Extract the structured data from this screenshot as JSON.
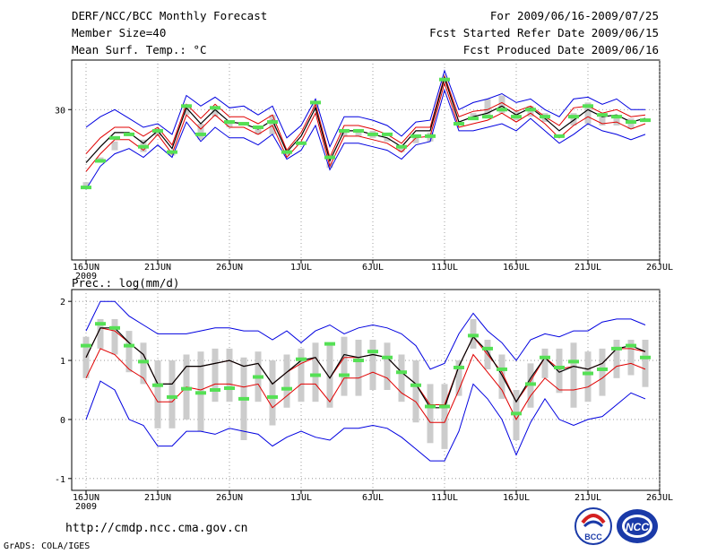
{
  "header": {
    "title": "DERF/NCC/BCC Monthly Forecast",
    "member_size": "Member Size=40",
    "var1": "Mean Surf. Temp.: °C",
    "period": "For 2009/06/16-2009/07/25",
    "started": "Fcst Started Refer Date 2009/06/15",
    "produced": "Fcst Produced Date 2009/06/16"
  },
  "footer": {
    "url": "http://cmdp.ncc.cma.gov.cn",
    "grads": "GrADS: COLA/IGES"
  },
  "logos": {
    "bcc": "BCC",
    "ncc": "NCC"
  },
  "colors": {
    "mean": "#000000",
    "spread": "#0000e0",
    "inner": "#e00000",
    "box": "#cccccc",
    "obs": "#55e055"
  },
  "chart_data": [
    {
      "type": "line",
      "title": "Mean Surf. Temp.: °C",
      "x_ticks": [
        "16JUN",
        "21JUN",
        "26JUN",
        "1JUL",
        "6JUL",
        "11JUL",
        "16JUL",
        "21JUL",
        "26JUL"
      ],
      "year_label": "2009",
      "y_ticks": [
        30
      ],
      "ylim": [
        21.5,
        32.8
      ],
      "series": [
        {
          "name": "upper",
          "values": [
            29.0,
            29.6,
            30.0,
            29.5,
            29.0,
            29.2,
            28.6,
            30.8,
            30.2,
            30.7,
            30.1,
            30.2,
            29.7,
            30.2,
            28.4,
            29.1,
            30.6,
            27.9,
            29.6,
            29.6,
            29.4,
            29.1,
            28.5,
            29.3,
            29.4,
            32.2,
            30.0,
            30.4,
            30.6,
            30.9,
            30.4,
            30.6,
            30.0,
            29.6,
            30.6,
            30.7,
            30.3,
            30.6,
            30.0,
            30.0
          ]
        },
        {
          "name": "upper_red",
          "values": [
            27.5,
            28.4,
            29.0,
            29.0,
            28.5,
            29.0,
            28.0,
            30.3,
            29.5,
            30.3,
            29.6,
            29.6,
            29.2,
            29.7,
            27.7,
            28.7,
            30.3,
            27.3,
            29.1,
            29.1,
            28.9,
            28.6,
            28.1,
            29.0,
            29.0,
            31.9,
            29.6,
            29.9,
            30.0,
            30.4,
            29.9,
            30.2,
            29.6,
            29.1,
            30.1,
            30.2,
            29.8,
            30.0,
            29.6,
            29.7
          ]
        },
        {
          "name": "mean",
          "values": [
            27.0,
            27.9,
            28.7,
            28.7,
            28.1,
            28.8,
            27.8,
            30.1,
            29.2,
            30.0,
            29.3,
            29.2,
            28.9,
            29.4,
            27.6,
            28.5,
            30.1,
            27.1,
            28.8,
            28.8,
            28.6,
            28.4,
            27.9,
            28.8,
            28.8,
            31.8,
            29.3,
            29.6,
            29.8,
            30.2,
            29.7,
            30.1,
            29.5,
            28.8,
            29.4,
            30.0,
            29.6,
            29.7,
            29.3,
            29.5
          ]
        },
        {
          "name": "lower_red",
          "values": [
            26.5,
            27.5,
            28.3,
            28.3,
            27.7,
            28.6,
            27.5,
            29.7,
            28.9,
            29.7,
            29.0,
            29.0,
            28.6,
            29.1,
            27.3,
            28.2,
            29.8,
            26.8,
            28.5,
            28.5,
            28.3,
            28.1,
            27.6,
            28.4,
            28.5,
            31.5,
            29.0,
            29.2,
            29.4,
            29.8,
            29.3,
            29.8,
            29.2,
            28.4,
            29.1,
            29.6,
            29.2,
            29.3,
            28.9,
            29.2
          ]
        },
        {
          "name": "lower",
          "values": [
            25.5,
            26.8,
            27.5,
            27.8,
            27.3,
            28.0,
            27.3,
            29.3,
            28.2,
            29.0,
            28.4,
            28.4,
            28.0,
            28.6,
            27.2,
            27.7,
            29.1,
            26.6,
            28.1,
            28.1,
            27.9,
            27.7,
            27.2,
            28.0,
            28.2,
            31.1,
            28.8,
            28.8,
            29.0,
            29.2,
            28.8,
            29.5,
            28.8,
            28.1,
            28.6,
            29.2,
            28.8,
            28.6,
            28.3,
            28.6
          ]
        },
        {
          "name": "box_top",
          "values": [
            25.9,
            27.3,
            28.2,
            28.7,
            28.3,
            28.8,
            27.7,
            30.3,
            29.2,
            30.1,
            29.4,
            29.3,
            29.0,
            29.7,
            27.6,
            28.2,
            30.4,
            27.0,
            28.7,
            28.8,
            28.8,
            28.4,
            28.0,
            28.6,
            28.7,
            31.8,
            29.3,
            29.8,
            30.6,
            30.8,
            29.9,
            30.2,
            29.8,
            28.5,
            29.8,
            30.4,
            29.6,
            29.6,
            29.5,
            29.5
          ]
        },
        {
          "name": "box_bot",
          "values": [
            25.6,
            27.0,
            27.7,
            28.5,
            27.6,
            28.5,
            27.4,
            29.7,
            28.3,
            29.6,
            29.0,
            29.1,
            28.6,
            28.6,
            27.4,
            28.1,
            29.9,
            26.7,
            28.5,
            28.5,
            28.4,
            28.2,
            27.6,
            28.1,
            28.2,
            31.5,
            29.2,
            29.5,
            29.5,
            29.8,
            29.4,
            29.6,
            29.3,
            28.4,
            29.1,
            29.2,
            29.1,
            29.1,
            28.9,
            29.4
          ]
        },
        {
          "name": "obs",
          "values": [
            25.6,
            27.1,
            28.4,
            28.6,
            27.9,
            28.8,
            27.6,
            30.2,
            28.6,
            30.1,
            29.3,
            29.2,
            29.0,
            29.3,
            27.6,
            28.1,
            30.4,
            27.3,
            28.8,
            28.8,
            28.6,
            28.6,
            27.9,
            28.5,
            28.5,
            31.7,
            29.2,
            29.5,
            29.6,
            30.0,
            29.6,
            30.0,
            29.6,
            28.5,
            29.6,
            30.2,
            29.7,
            29.6,
            29.3,
            29.4
          ]
        }
      ]
    },
    {
      "type": "line",
      "title": "Prec.: log(mm/d)",
      "x_ticks": [
        "16JUN",
        "21JUN",
        "26JUN",
        "1JUL",
        "6JUL",
        "11JUL",
        "16JUL",
        "21JUL",
        "26JUL"
      ],
      "year_label": "2009",
      "y_ticks": [
        -1,
        0,
        1,
        2
      ],
      "ylim": [
        -1.2,
        2.2
      ],
      "series": [
        {
          "name": "upper",
          "values": [
            1.5,
            2.0,
            2.0,
            1.75,
            1.6,
            1.45,
            1.45,
            1.45,
            1.5,
            1.55,
            1.55,
            1.5,
            1.5,
            1.35,
            1.5,
            1.3,
            1.5,
            1.6,
            1.45,
            1.55,
            1.6,
            1.55,
            1.45,
            1.25,
            0.85,
            0.95,
            1.45,
            1.8,
            1.5,
            1.3,
            1.0,
            1.35,
            1.45,
            1.4,
            1.5,
            1.5,
            1.65,
            1.7,
            1.7,
            1.6
          ]
        },
        {
          "name": "upper_red",
          "values": [
            1.05,
            1.55,
            1.5,
            1.3,
            1.1,
            0.6,
            0.6,
            0.9,
            0.9,
            0.95,
            1.0,
            0.9,
            0.95,
            0.6,
            0.8,
            0.95,
            1.05,
            0.7,
            1.05,
            1.05,
            1.1,
            1.05,
            0.8,
            0.6,
            0.25,
            0.25,
            0.9,
            1.4,
            1.1,
            0.8,
            0.3,
            0.65,
            1.05,
            0.85,
            0.9,
            0.85,
            0.95,
            1.2,
            1.2,
            1.15
          ]
        },
        {
          "name": "mean",
          "values": [
            1.05,
            1.55,
            1.55,
            1.3,
            1.1,
            0.6,
            0.6,
            0.9,
            0.9,
            0.95,
            1.0,
            0.9,
            0.95,
            0.6,
            0.8,
            1.0,
            1.05,
            0.7,
            1.1,
            1.05,
            1.1,
            1.05,
            0.8,
            0.6,
            0.2,
            0.2,
            0.9,
            1.4,
            1.15,
            0.75,
            0.3,
            0.7,
            1.05,
            0.8,
            0.9,
            0.85,
            0.95,
            1.2,
            1.25,
            1.15
          ]
        },
        {
          "name": "lower_red",
          "values": [
            0.7,
            1.2,
            1.1,
            0.85,
            0.7,
            0.3,
            0.3,
            0.55,
            0.5,
            0.6,
            0.6,
            0.55,
            0.6,
            0.2,
            0.4,
            0.6,
            0.6,
            0.3,
            0.7,
            0.7,
            0.8,
            0.7,
            0.45,
            0.3,
            -0.05,
            -0.05,
            0.5,
            1.1,
            0.8,
            0.5,
            0.0,
            0.4,
            0.7,
            0.5,
            0.5,
            0.55,
            0.7,
            0.9,
            0.95,
            0.85
          ]
        },
        {
          "name": "lower",
          "values": [
            0.0,
            0.65,
            0.5,
            0.0,
            -0.1,
            -0.45,
            -0.45,
            -0.2,
            -0.2,
            -0.25,
            -0.15,
            -0.2,
            -0.25,
            -0.45,
            -0.3,
            -0.2,
            -0.3,
            -0.35,
            -0.15,
            -0.15,
            -0.1,
            -0.15,
            -0.3,
            -0.5,
            -0.7,
            -0.7,
            -0.2,
            0.6,
            0.35,
            0.0,
            -0.6,
            -0.05,
            0.35,
            0.0,
            -0.1,
            0.0,
            0.05,
            0.25,
            0.45,
            0.35
          ]
        },
        {
          "name": "box_top",
          "values": [
            1.4,
            1.7,
            1.7,
            1.5,
            1.3,
            1.0,
            1.0,
            1.1,
            1.15,
            1.2,
            1.2,
            1.05,
            1.15,
            1.0,
            1.1,
            1.2,
            1.3,
            1.3,
            1.4,
            1.35,
            1.35,
            1.3,
            1.1,
            1.0,
            0.6,
            0.6,
            1.0,
            1.7,
            1.35,
            1.1,
            0.5,
            0.95,
            1.2,
            1.2,
            1.3,
            1.15,
            1.2,
            1.35,
            1.35,
            1.35
          ]
        },
        {
          "name": "box_bot",
          "values": [
            0.7,
            1.2,
            1.1,
            0.8,
            0.6,
            -0.15,
            -0.15,
            0.0,
            -0.2,
            0.3,
            0.3,
            -0.35,
            0.3,
            -0.1,
            0.2,
            0.3,
            0.3,
            0.2,
            0.4,
            0.4,
            0.5,
            0.5,
            0.3,
            -0.05,
            -0.4,
            -0.5,
            0.4,
            1.2,
            0.85,
            0.35,
            -0.35,
            0.2,
            0.7,
            0.45,
            0.2,
            0.3,
            0.4,
            0.7,
            0.75,
            0.55
          ]
        },
        {
          "name": "obs",
          "values": [
            1.25,
            1.62,
            1.55,
            1.25,
            0.98,
            0.58,
            0.38,
            0.52,
            0.45,
            0.5,
            0.53,
            0.35,
            0.72,
            0.38,
            0.52,
            1.02,
            0.75,
            1.28,
            0.75,
            1.0,
            1.15,
            1.05,
            0.8,
            0.58,
            0.22,
            0.22,
            0.88,
            1.42,
            1.2,
            0.85,
            0.1,
            0.6,
            1.05,
            0.88,
            0.98,
            0.78,
            0.85,
            1.2,
            1.25,
            1.05
          ]
        }
      ]
    }
  ]
}
